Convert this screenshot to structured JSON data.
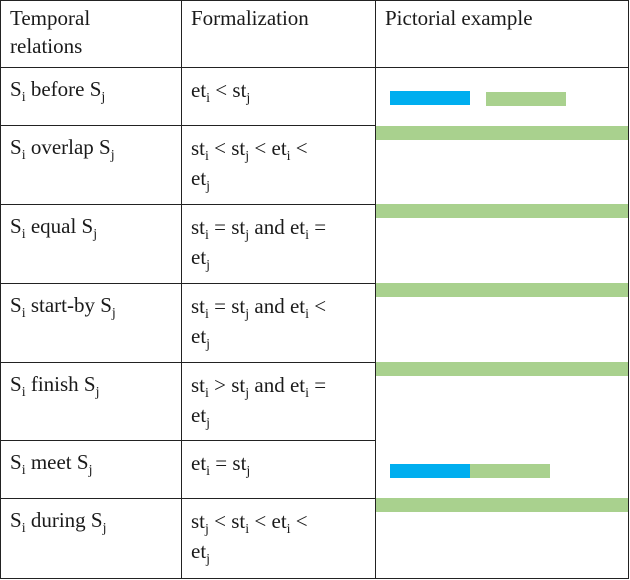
{
  "table": {
    "headers": {
      "relation": [
        "Temporal",
        "relations"
      ],
      "formalization": "Formalization",
      "example": "Pictorial example"
    },
    "rows": [
      {
        "relation": {
          "pre": "S",
          "sub1": "i",
          "mid": " before S",
          "sub2": "j"
        },
        "formula_line1": [
          {
            "t": "et"
          },
          {
            "s": "i"
          },
          {
            "t": " < st"
          },
          {
            "s": "j"
          }
        ],
        "formula_line2": []
      },
      {
        "relation": {
          "pre": "S",
          "sub1": "i",
          "mid": " overlap S",
          "sub2": "j"
        },
        "formula_line1": [
          {
            "t": "st"
          },
          {
            "s": "i"
          },
          {
            "t": " < st"
          },
          {
            "s": "j"
          },
          {
            "t": " < et"
          },
          {
            "s": "i"
          },
          {
            "t": " <"
          }
        ],
        "formula_line2": [
          {
            "t": "et"
          },
          {
            "s": "j"
          }
        ]
      },
      {
        "relation": {
          "pre": "S",
          "sub1": "i",
          "mid": " equal S",
          "sub2": "j"
        },
        "formula_line1": [
          {
            "t": "st"
          },
          {
            "s": "i"
          },
          {
            "t": " = st"
          },
          {
            "s": "j"
          },
          {
            "t": " and et"
          },
          {
            "s": "i"
          },
          {
            "t": " ="
          }
        ],
        "formula_line2": [
          {
            "t": "et"
          },
          {
            "s": "j"
          }
        ]
      },
      {
        "relation": {
          "pre": "S",
          "sub1": "i",
          "mid": " start-by S",
          "sub2": "j"
        },
        "formula_line1": [
          {
            "t": "st"
          },
          {
            "s": "i"
          },
          {
            "t": " = st"
          },
          {
            "s": "j"
          },
          {
            "t": " and et"
          },
          {
            "s": "i"
          },
          {
            "t": " <"
          }
        ],
        "formula_line2": [
          {
            "t": "et"
          },
          {
            "s": "j"
          }
        ]
      },
      {
        "relation": {
          "pre": "S",
          "sub1": "i",
          "mid": " finish S",
          "sub2": "j"
        },
        "formula_line1": [
          {
            "t": "st"
          },
          {
            "s": "i"
          },
          {
            "t": " > st"
          },
          {
            "s": "j"
          },
          {
            "t": " and et"
          },
          {
            "s": "i"
          },
          {
            "t": " ="
          }
        ],
        "formula_line2": [
          {
            "t": "et"
          },
          {
            "s": "j"
          }
        ]
      },
      {
        "relation": {
          "pre": "S",
          "sub1": "i",
          "mid": " meet S",
          "sub2": "j"
        },
        "formula_line1": [
          {
            "t": "et"
          },
          {
            "s": "i"
          },
          {
            "t": " = st"
          },
          {
            "s": "j"
          }
        ],
        "formula_line2": []
      },
      {
        "relation": {
          "pre": "S",
          "sub1": "i",
          "mid": " during S",
          "sub2": "j"
        },
        "formula_line1": [
          {
            "t": "st"
          },
          {
            "s": "j"
          },
          {
            "t": " < st"
          },
          {
            "s": "i"
          },
          {
            "t": " < et"
          },
          {
            "s": "i"
          },
          {
            "t": " <"
          }
        ],
        "formula_line2": [
          {
            "t": "et"
          },
          {
            "s": "j"
          }
        ]
      }
    ]
  },
  "colors": {
    "interval_i": "#00aeef",
    "interval_j": "#a9d18e"
  }
}
